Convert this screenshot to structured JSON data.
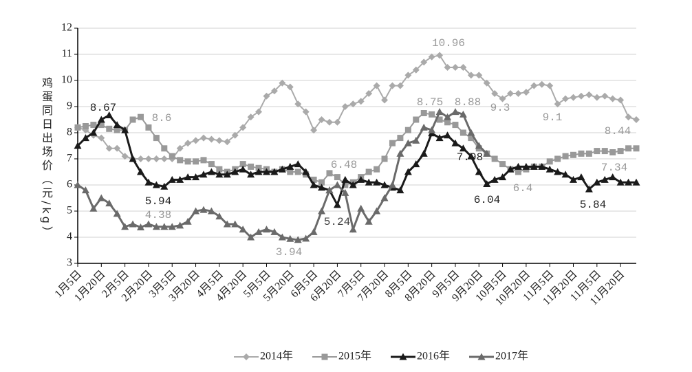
{
  "chart_data": {
    "type": "line",
    "y_label": "鸡蛋同日出场价（元/kg）",
    "categories": [
      "1月5日",
      null,
      null,
      "1月20日",
      null,
      null,
      "2月5日",
      null,
      null,
      "2月20日",
      null,
      null,
      "3月5日",
      null,
      null,
      "3月20日",
      null,
      null,
      "4月5日",
      null,
      null,
      "4月20日",
      null,
      null,
      "5月5日",
      null,
      null,
      "5月20日",
      null,
      null,
      "6月5日",
      null,
      null,
      "6月20日",
      null,
      null,
      "7月5日",
      null,
      null,
      "7月20日",
      null,
      null,
      "8月5日",
      null,
      null,
      "8月20日",
      null,
      null,
      "9月5日",
      null,
      null,
      "9月20日",
      null,
      null,
      "10月5日",
      null,
      null,
      "10月20日",
      null,
      null,
      "11月5日",
      null,
      null,
      "11月20日",
      null,
      null,
      "11月5日",
      null,
      null,
      "11月20日",
      null,
      null
    ],
    "series": [
      {
        "name": "2014年",
        "color": "#aaaaaa",
        "marker": "diamond",
        "values": [
          8.2,
          8.1,
          7.9,
          7.8,
          7.4,
          7.4,
          7.1,
          7.0,
          7.0,
          7.0,
          7.0,
          7.0,
          7.0,
          7.4,
          7.6,
          7.7,
          7.8,
          7.75,
          7.7,
          7.65,
          7.9,
          8.2,
          8.6,
          8.8,
          9.4,
          9.6,
          9.9,
          9.75,
          9.1,
          8.8,
          8.1,
          8.5,
          8.4,
          8.4,
          9.0,
          9.1,
          9.2,
          9.5,
          9.8,
          9.25,
          9.8,
          9.8,
          10.2,
          10.4,
          10.7,
          10.9,
          10.96,
          10.5,
          10.5,
          10.5,
          10.2,
          10.2,
          9.9,
          9.5,
          9.3,
          9.5,
          9.5,
          9.55,
          9.8,
          9.85,
          9.8,
          9.1,
          9.3,
          9.35,
          9.4,
          9.45,
          9.35,
          9.4,
          9.3,
          9.25,
          8.6,
          8.5
        ]
      },
      {
        "name": "2015年",
        "color": "#999999",
        "marker": "square",
        "values": [
          8.2,
          8.25,
          8.3,
          8.3,
          8.15,
          8.1,
          8.1,
          8.5,
          8.6,
          8.2,
          7.8,
          7.4,
          7.1,
          6.95,
          6.9,
          6.9,
          6.95,
          6.8,
          6.6,
          6.5,
          6.6,
          6.8,
          6.7,
          6.65,
          6.6,
          6.5,
          6.6,
          6.5,
          6.5,
          6.4,
          6.2,
          6.1,
          6.45,
          6.3,
          6.0,
          6.1,
          6.3,
          6.5,
          6.6,
          7.0,
          7.6,
          7.8,
          8.1,
          8.5,
          8.75,
          8.7,
          8.5,
          8.4,
          8.3,
          8.0,
          7.8,
          7.4,
          7.2,
          7.0,
          6.8,
          6.6,
          6.5,
          6.6,
          6.7,
          6.7,
          6.9,
          7.0,
          7.1,
          7.15,
          7.2,
          7.2,
          7.3,
          7.3,
          7.25,
          7.3,
          7.4,
          7.4
        ]
      },
      {
        "name": "2016年",
        "color": "#1a1a1a",
        "marker": "triangle",
        "values": [
          7.5,
          7.8,
          8.0,
          8.5,
          8.67,
          8.3,
          8.1,
          7.0,
          6.5,
          6.1,
          6.0,
          5.94,
          6.2,
          6.2,
          6.3,
          6.3,
          6.4,
          6.5,
          6.4,
          6.4,
          6.5,
          6.6,
          6.4,
          6.5,
          6.5,
          6.5,
          6.6,
          6.7,
          6.8,
          6.5,
          6.0,
          5.9,
          5.8,
          5.24,
          6.2,
          6.0,
          6.2,
          6.1,
          6.1,
          6.0,
          5.9,
          5.8,
          6.5,
          6.8,
          7.2,
          7.98,
          7.8,
          7.9,
          7.6,
          7.4,
          7.1,
          6.5,
          6.04,
          6.2,
          6.3,
          6.6,
          6.7,
          6.7,
          6.7,
          6.7,
          6.6,
          6.5,
          6.4,
          6.2,
          6.3,
          5.84,
          6.1,
          6.2,
          6.3,
          6.1,
          6.1,
          6.1
        ]
      },
      {
        "name": "2017年",
        "color": "#6a6a6a",
        "marker": "triangle",
        "values": [
          6.0,
          5.8,
          5.1,
          5.5,
          5.3,
          4.9,
          4.4,
          4.5,
          4.38,
          4.5,
          4.4,
          4.4,
          4.4,
          4.45,
          4.6,
          5.0,
          5.05,
          5.0,
          4.8,
          4.5,
          4.5,
          4.3,
          4.0,
          4.2,
          4.3,
          4.2,
          4.0,
          3.94,
          3.9,
          3.95,
          4.2,
          5.0,
          5.8,
          6.0,
          5.7,
          4.3,
          5.1,
          4.6,
          5.0,
          5.5,
          6.0,
          7.2,
          7.6,
          7.7,
          8.2,
          8.1,
          8.8,
          8.6,
          8.8,
          8.7,
          8.0,
          7.5,
          7.2,
          null,
          null,
          null,
          null,
          null,
          null,
          null,
          null,
          null,
          null,
          null,
          null,
          null,
          null,
          null,
          null,
          null,
          null,
          null
        ]
      }
    ],
    "annotations": [
      "8.67",
      "8.6",
      "5.94",
      "4.38",
      "3.94",
      "6.48",
      "5.24",
      "8.75",
      "10.96",
      "8.88",
      "7.98",
      "9.3",
      "6.04",
      "6.4",
      "9.1",
      "5.84",
      "8.44",
      "7.34"
    ],
    "ylim": [
      3,
      12
    ],
    "yticks": [
      3,
      4,
      5,
      6,
      7,
      8,
      9,
      10,
      11,
      12
    ],
    "grid": true,
    "legend": "bottom"
  }
}
